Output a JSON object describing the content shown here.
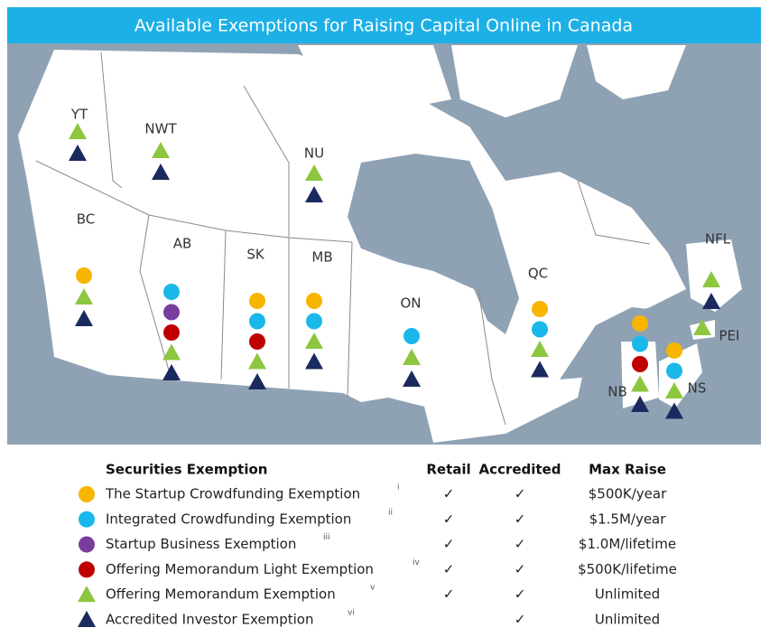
{
  "title": "Available Exemptions for Raising Capital Online in Canada",
  "provinces": [
    "YT",
    "NWT",
    "NU",
    "BC",
    "AB",
    "SK",
    "MB",
    "ON",
    "QC",
    "NFL",
    "PEI",
    "NB",
    "NS"
  ],
  "legend": {
    "headers": [
      "Securities Exemption",
      "Retail",
      "Accredited",
      "Max Raise"
    ],
    "rows": [
      {
        "name": "The Startup Crowdfunding Exemption",
        "note": "i",
        "retail": "✓",
        "accredited": "✓",
        "max_raise": "$500K/year"
      },
      {
        "name": "Integrated Crowdfunding Exemption",
        "note": "ii",
        "retail": "✓",
        "accredited": "✓",
        "max_raise": "$1.5M/year"
      },
      {
        "name": "Startup Business Exemption",
        "note": "iii",
        "retail": "✓",
        "accredited": "✓",
        "max_raise": "$1.0M/lifetime"
      },
      {
        "name": "Offering Memorandum Light Exemption",
        "note": "iv",
        "retail": "✓",
        "accredited": "✓",
        "max_raise": "$500K/lifetime"
      },
      {
        "name": "Offering Memorandum Exemption",
        "note": "v",
        "retail": "✓",
        "accredited": "✓",
        "max_raise": "Unlimited"
      },
      {
        "name": "Accredited Investor Exemption",
        "note": "vi",
        "accredited": "✓",
        "max_raise": "Unlimited"
      }
    ]
  }
}
